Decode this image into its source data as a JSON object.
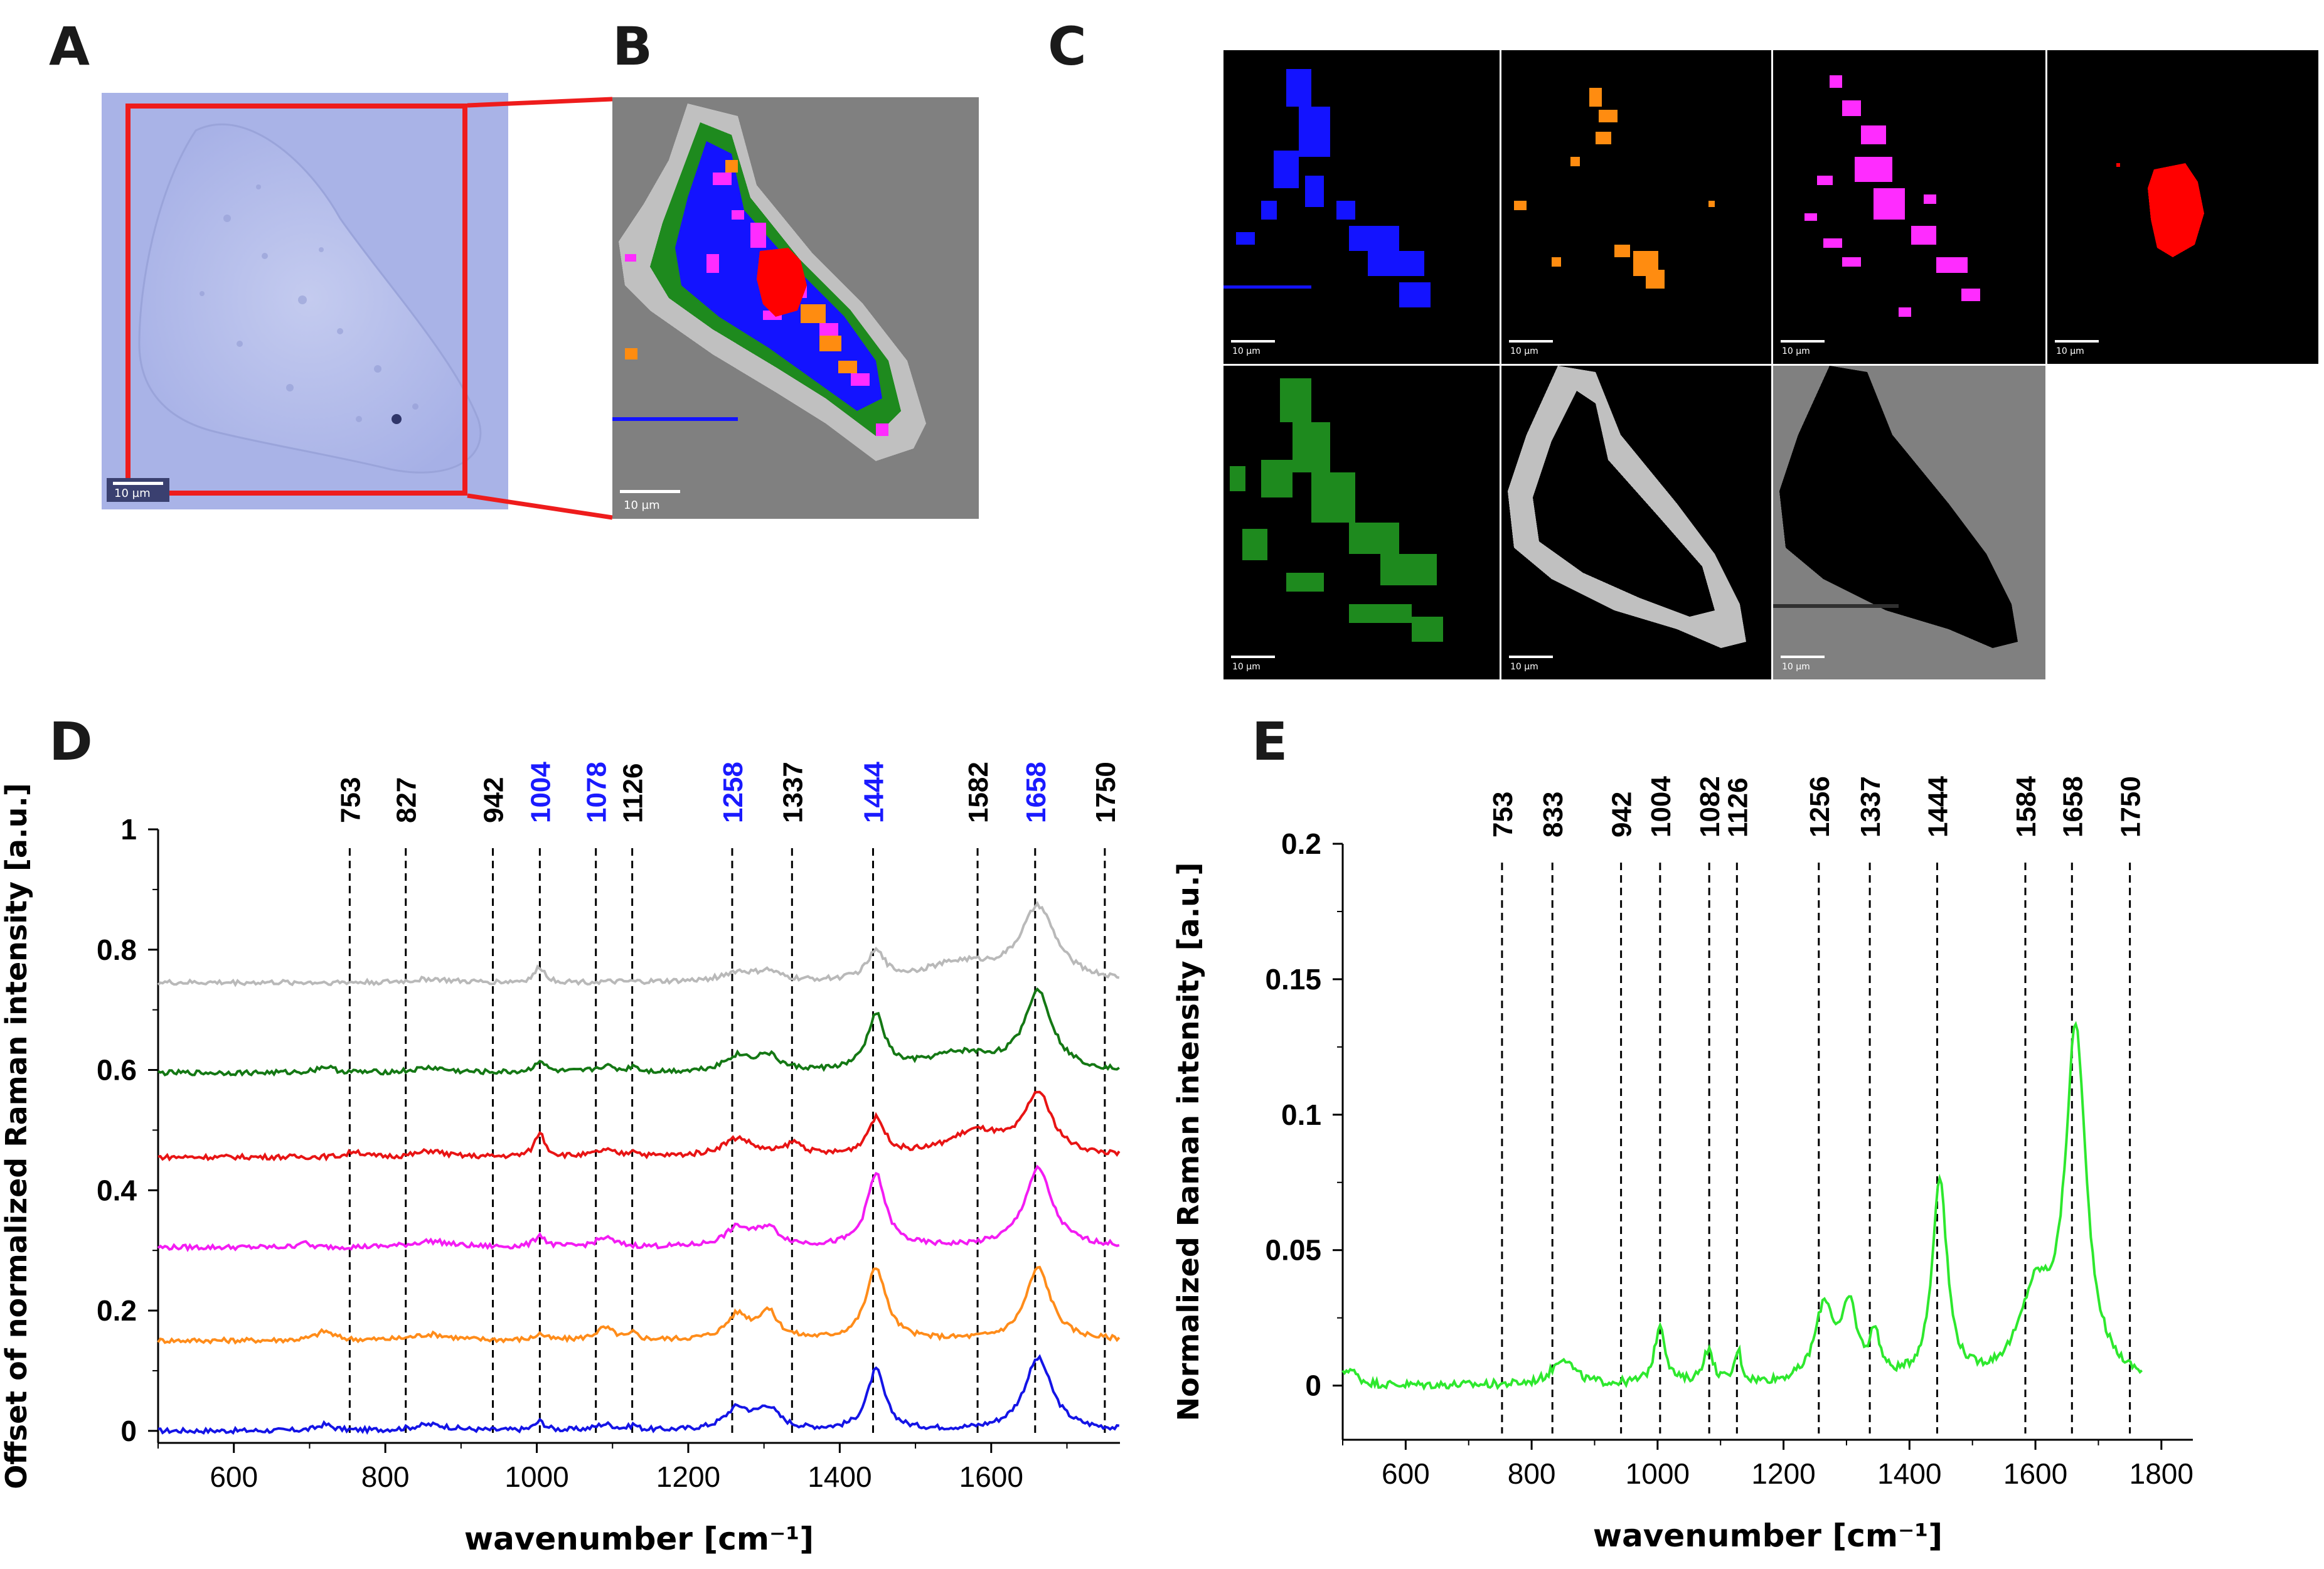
{
  "panels": {
    "A": {
      "letter": "A",
      "scale_label": "10 µm"
    },
    "B": {
      "letter": "B",
      "scale_label": "10 µm"
    },
    "C": {
      "letter": "C",
      "scale_label": "10 µm"
    },
    "D": {
      "letter": "D"
    },
    "E": {
      "letter": "E"
    }
  },
  "map_colors": {
    "blue": "#1313ff",
    "orange": "#ff8c10",
    "magenta": "#ff2cff",
    "red": "#ff0000",
    "green": "#1e8a1e",
    "lightgray": "#c0c0c0",
    "gray": "#808080"
  },
  "chart_data": [
    {
      "id": "D",
      "type": "line",
      "xlabel": "wavenumber [cm⁻¹]",
      "ylabel": "Offset of normalized Raman intensity [a.u.]",
      "xlim": [
        500,
        1770
      ],
      "ylim": [
        -0.02,
        1.0
      ],
      "xticks": [
        "600",
        "800",
        "1000",
        "1200",
        "1400",
        "1600"
      ],
      "yticks": [
        "0",
        "0.2",
        "0.4",
        "0.6",
        "0.8",
        "1"
      ],
      "grid": false,
      "peaks": [
        {
          "label": "753",
          "x": 753,
          "color": "#000000"
        },
        {
          "label": "827",
          "x": 827,
          "color": "#000000"
        },
        {
          "label": "942",
          "x": 942,
          "color": "#000000"
        },
        {
          "label": "1004",
          "x": 1004,
          "color": "#1a1aff"
        },
        {
          "label": "1078",
          "x": 1078,
          "color": "#1a1aff"
        },
        {
          "label": "1126",
          "x": 1126,
          "color": "#000000"
        },
        {
          "label": "1258",
          "x": 1258,
          "color": "#1a1aff"
        },
        {
          "label": "1337",
          "x": 1337,
          "color": "#000000"
        },
        {
          "label": "1444",
          "x": 1444,
          "color": "#1a1aff"
        },
        {
          "label": "1582",
          "x": 1582,
          "color": "#000000"
        },
        {
          "label": "1658",
          "x": 1658,
          "color": "#1a1aff"
        },
        {
          "label": "1750",
          "x": 1750,
          "color": "#000000"
        }
      ],
      "series": [
        {
          "color": "#1414e6",
          "offset": 0.0,
          "peaks": [
            [
              1004,
              0.015,
              8
            ],
            [
              1448,
              0.1,
              14
            ],
            [
              1662,
              0.12,
              22
            ],
            [
              1265,
              0.035,
              20
            ],
            [
              1305,
              0.035,
              18
            ],
            [
              720,
              0.01,
              12
            ],
            [
              860,
              0.01,
              30
            ],
            [
              1090,
              0.01,
              15
            ],
            [
              1128,
              0.008,
              6
            ]
          ]
        },
        {
          "color": "#ff8c1a",
          "offset": 0.15,
          "peaks": [
            [
              1004,
              0.01,
              8
            ],
            [
              1448,
              0.12,
              16
            ],
            [
              1662,
              0.12,
              20
            ],
            [
              1265,
              0.04,
              18
            ],
            [
              1305,
              0.045,
              16
            ],
            [
              720,
              0.015,
              14
            ],
            [
              860,
              0.01,
              30
            ],
            [
              1090,
              0.02,
              15
            ],
            [
              1128,
              0.01,
              6
            ]
          ]
        },
        {
          "color": "#f31cf3",
          "offset": 0.305,
          "peaks": [
            [
              1004,
              0.02,
              8
            ],
            [
              1448,
              0.12,
              15
            ],
            [
              1662,
              0.13,
              22
            ],
            [
              1265,
              0.03,
              20
            ],
            [
              1305,
              0.03,
              18
            ],
            [
              690,
              0.01,
              6
            ],
            [
              860,
              0.01,
              30
            ],
            [
              1090,
              0.015,
              15
            ]
          ]
        },
        {
          "color": "#e81414",
          "offset": 0.455,
          "peaks": [
            [
              1004,
              0.04,
              8
            ],
            [
              1448,
              0.06,
              14
            ],
            [
              1662,
              0.1,
              22
            ],
            [
              1265,
              0.03,
              25
            ],
            [
              1340,
              0.02,
              15
            ],
            [
              1580,
              0.04,
              45
            ],
            [
              760,
              0.01,
              10
            ],
            [
              860,
              0.01,
              20
            ],
            [
              1090,
              0.01,
              15
            ],
            [
              1128,
              0.01,
              6
            ]
          ]
        },
        {
          "color": "#147814",
          "offset": 0.595,
          "peaks": [
            [
              1004,
              0.02,
              8
            ],
            [
              1448,
              0.09,
              14
            ],
            [
              1662,
              0.13,
              22
            ],
            [
              1265,
              0.025,
              22
            ],
            [
              1305,
              0.025,
              18
            ],
            [
              1560,
              0.03,
              60
            ],
            [
              720,
              0.01,
              14
            ],
            [
              860,
              0.008,
              25
            ],
            [
              1090,
              0.01,
              15
            ],
            [
              1128,
              0.01,
              6
            ]
          ]
        },
        {
          "color": "#b9b9b9",
          "offset": 0.745,
          "peaks": [
            [
              1004,
              0.025,
              8
            ],
            [
              1448,
              0.045,
              14
            ],
            [
              1662,
              0.12,
              28
            ],
            [
              1265,
              0.015,
              25
            ],
            [
              1305,
              0.015,
              18
            ],
            [
              1560,
              0.03,
              60
            ],
            [
              860,
              0.006,
              25
            ]
          ]
        }
      ]
    },
    {
      "id": "E",
      "type": "line",
      "xlabel": "wavenumber [cm⁻¹]",
      "ylabel": "Normalized Raman intensity [a.u.]",
      "xlim": [
        500,
        1850
      ],
      "ylim": [
        -0.02,
        0.2
      ],
      "xticks": [
        "600",
        "800",
        "1000",
        "1200",
        "1400",
        "1600",
        "1800"
      ],
      "yticks": [
        "0",
        "0.05",
        "0.1",
        "0.15",
        "0.2"
      ],
      "grid": false,
      "peaks": [
        {
          "label": "753",
          "x": 753,
          "color": "#000000"
        },
        {
          "label": "833",
          "x": 833,
          "color": "#000000"
        },
        {
          "label": "942",
          "x": 942,
          "color": "#000000"
        },
        {
          "label": "1004",
          "x": 1004,
          "color": "#000000"
        },
        {
          "label": "1082",
          "x": 1082,
          "color": "#000000"
        },
        {
          "label": "1126",
          "x": 1126,
          "color": "#000000"
        },
        {
          "label": "1256",
          "x": 1256,
          "color": "#000000"
        },
        {
          "label": "1337",
          "x": 1337,
          "color": "#000000"
        },
        {
          "label": "1444",
          "x": 1444,
          "color": "#000000"
        },
        {
          "label": "1584",
          "x": 1584,
          "color": "#000000"
        },
        {
          "label": "1658",
          "x": 1658,
          "color": "#000000"
        },
        {
          "label": "1750",
          "x": 1750,
          "color": "#000000"
        }
      ],
      "series": [
        {
          "color": "#2ee82e",
          "offset": 0.0,
          "start": 500,
          "end": 1770,
          "peaks": [
            [
              1004,
              0.022,
              10
            ],
            [
              1448,
              0.075,
              14
            ],
            [
              1664,
              0.128,
              20
            ],
            [
              1600,
              0.03,
              30
            ],
            [
              1265,
              0.028,
              18
            ],
            [
              1305,
              0.026,
              14
            ],
            [
              1345,
              0.016,
              10
            ],
            [
              850,
              0.01,
              20
            ],
            [
              1080,
              0.012,
              10
            ],
            [
              1128,
              0.012,
              6
            ],
            [
              510,
              0.006,
              15
            ]
          ]
        }
      ]
    }
  ]
}
